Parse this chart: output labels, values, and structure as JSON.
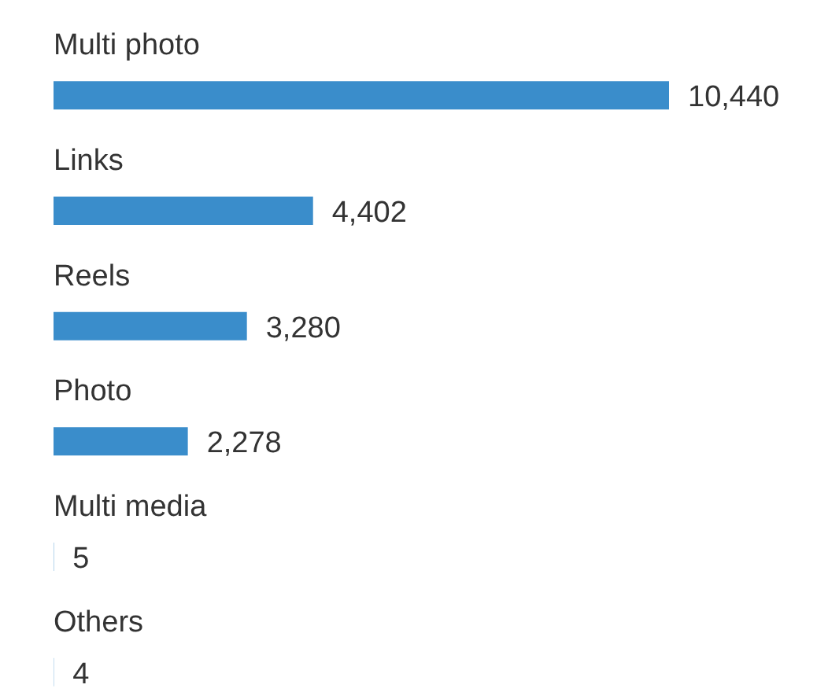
{
  "chart_data": {
    "type": "bar",
    "orientation": "horizontal",
    "categories": [
      "Multi photo",
      "Links",
      "Reels",
      "Photo",
      "Multi media",
      "Others"
    ],
    "values": [
      10440,
      4402,
      3280,
      2278,
      5,
      4
    ],
    "value_labels": [
      "10,440",
      "4,402",
      "3,280",
      "2,278",
      "5",
      "4"
    ],
    "color": "#3a8dcb"
  }
}
